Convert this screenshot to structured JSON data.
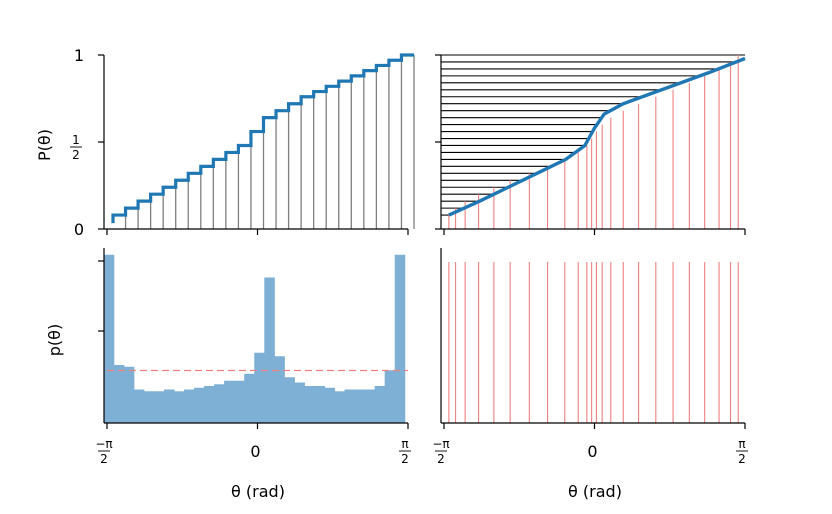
{
  "chart_data": [
    {
      "panel": "top-left",
      "type": "line",
      "style": "step function (empirical CDF) with vertical stems to the x-axis",
      "ylabel": "P(θ)",
      "xlim": [
        -1.5708,
        1.5708
      ],
      "ylim": [
        0,
        1
      ],
      "yticks": [
        "0",
        "1/2",
        "1"
      ],
      "x": [
        -1.5708,
        -1.4399,
        -1.309,
        -1.1781,
        -1.0472,
        -0.9163,
        -0.7854,
        -0.6545,
        -0.5236,
        -0.3927,
        -0.2618,
        -0.1309,
        0.0,
        0.1309,
        0.2618,
        0.3927,
        0.5236,
        0.6545,
        0.7854,
        0.9163,
        1.0472,
        1.1781,
        1.309,
        1.4399,
        1.5708
      ],
      "y": [
        0.08,
        0.12,
        0.16,
        0.2,
        0.24,
        0.28,
        0.32,
        0.36,
        0.4,
        0.44,
        0.48,
        0.56,
        0.64,
        0.68,
        0.72,
        0.76,
        0.79,
        0.82,
        0.85,
        0.88,
        0.91,
        0.94,
        0.97,
        1.0,
        1.0
      ],
      "color": "#1f77b4",
      "stem_color": "#7f7f7f",
      "grid": false
    },
    {
      "panel": "top-right",
      "type": "line",
      "style": "smooth CDF with horizontal black lines at y levels and red vertical lines at inverse-sampled x positions",
      "xlim": [
        -1.5708,
        1.5708
      ],
      "ylim": [
        0,
        1
      ],
      "curve_x": [
        -1.52,
        -1.2,
        -0.9,
        -0.6,
        -0.3,
        -0.1,
        0.0,
        0.1,
        0.3,
        0.6,
        0.9,
        1.2,
        1.5708
      ],
      "curve_y": [
        0.08,
        0.16,
        0.24,
        0.32,
        0.4,
        0.48,
        0.58,
        0.66,
        0.72,
        0.78,
        0.84,
        0.9,
        0.98
      ],
      "levels": [
        0.08,
        0.12,
        0.16,
        0.2,
        0.24,
        0.28,
        0.32,
        0.36,
        0.4,
        0.44,
        0.48,
        0.52,
        0.56,
        0.6,
        0.64,
        0.68,
        0.72,
        0.76,
        0.8,
        0.84,
        0.88,
        0.92,
        0.96,
        1.0
      ],
      "samples_x": [
        -1.52,
        -1.45,
        -1.35,
        -1.21,
        -1.05,
        -0.88,
        -0.68,
        -0.49,
        -0.31,
        -0.17,
        -0.08,
        -0.03,
        0.02,
        0.08,
        0.17,
        0.3,
        0.46,
        0.64,
        0.82,
        0.99,
        1.15,
        1.3,
        1.42,
        1.5
      ],
      "curve_color": "#1f77b4",
      "level_color": "#000000",
      "sample_color": "#f08080",
      "grid": false
    },
    {
      "panel": "bottom-left",
      "type": "bar",
      "style": "histogram (density) with dashed uniform-density reference line",
      "ylabel": "p(θ)",
      "xlabel": "θ (rad)",
      "xlim": [
        -1.5708,
        1.5708
      ],
      "xticks": [
        "−π/2",
        "0",
        "π/2"
      ],
      "bin_edges": [
        -1.5708,
        -1.4661,
        -1.3614,
        -1.2566,
        -1.1519,
        -1.0472,
        -0.9425,
        -0.8378,
        -0.733,
        -0.6283,
        -0.5236,
        -0.4189,
        -0.3142,
        -0.2094,
        -0.1047,
        0.0,
        0.1047,
        0.2094,
        0.3142,
        0.4189,
        0.5236,
        0.6283,
        0.733,
        0.8378,
        0.9425,
        1.0472,
        1.1519,
        1.2566,
        1.3614,
        1.4661,
        1.5708
      ],
      "values": [
        0.96,
        0.33,
        0.32,
        0.19,
        0.18,
        0.18,
        0.19,
        0.18,
        0.19,
        0.2,
        0.21,
        0.22,
        0.24,
        0.24,
        0.28,
        0.4,
        0.83,
        0.38,
        0.26,
        0.23,
        0.21,
        0.21,
        0.2,
        0.18,
        0.19,
        0.19,
        0.19,
        0.21,
        0.3,
        0.96
      ],
      "ylim": [
        0,
        1.0
      ],
      "uniform_density": 0.3,
      "bar_color": "#7eb0d5",
      "reference_color": "#f08080",
      "grid": false
    },
    {
      "panel": "bottom-right",
      "type": "scatter",
      "style": "rug of vertical red lines at sample positions",
      "xlabel": "θ (rad)",
      "xlim": [
        -1.5708,
        1.5708
      ],
      "xticks": [
        "−π/2",
        "0",
        "π/2"
      ],
      "samples_x": [
        -1.52,
        -1.45,
        -1.35,
        -1.21,
        -1.05,
        -0.88,
        -0.68,
        -0.49,
        -0.31,
        -0.17,
        -0.08,
        -0.03,
        0.02,
        0.08,
        0.17,
        0.3,
        0.46,
        0.64,
        0.82,
        0.99,
        1.15,
        1.3,
        1.42,
        1.5
      ],
      "sample_color": "#f08080",
      "grid": false
    }
  ]
}
